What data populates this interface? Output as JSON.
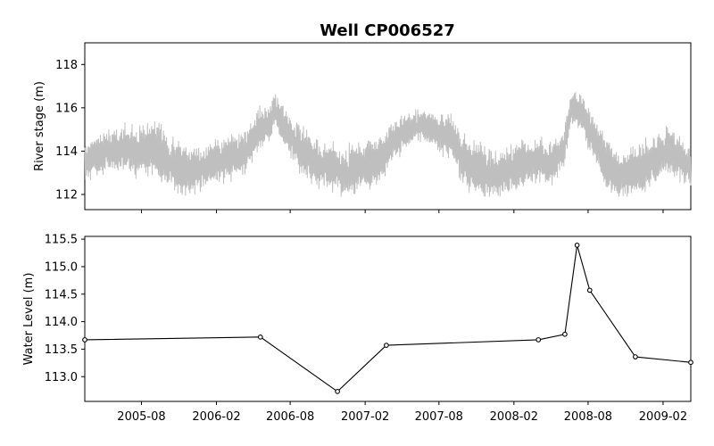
{
  "chart_data": [
    {
      "type": "line",
      "title": "Well CP006527",
      "ylabel": "River stage (m)",
      "xlabel": "",
      "xlim": [
        "2005-03-15",
        "2009-04-10"
      ],
      "ylim": [
        111.3,
        119.0
      ],
      "yticks": [
        112,
        114,
        116,
        118
      ],
      "grid": false,
      "series": [
        {
          "color": "#bfbfbf",
          "style": "noisy-daily",
          "anchors": [
            [
              "2005-03-15",
              113.5,
              0.9
            ],
            [
              "2005-05-01",
              114.0,
              0.9
            ],
            [
              "2005-07-01",
              114.0,
              1.0
            ],
            [
              "2005-09-01",
              114.2,
              1.2
            ],
            [
              "2005-10-15",
              113.3,
              1.1
            ],
            [
              "2005-12-15",
              113.1,
              1.0
            ],
            [
              "2006-02-01",
              113.6,
              0.9
            ],
            [
              "2006-03-20",
              113.8,
              0.9
            ],
            [
              "2006-04-15",
              113.9,
              0.9
            ],
            [
              "2006-05-15",
              115.0,
              0.8
            ],
            [
              "2006-06-10",
              115.3,
              0.8
            ],
            [
              "2006-06-25",
              116.0,
              0.7
            ],
            [
              "2006-07-20",
              115.0,
              0.9
            ],
            [
              "2006-08-20",
              114.2,
              1.0
            ],
            [
              "2006-10-01",
              113.5,
              1.0
            ],
            [
              "2006-12-15",
              113.0,
              1.0
            ],
            [
              "2007-02-15",
              113.4,
              1.0
            ],
            [
              "2007-03-20",
              113.9,
              0.9
            ],
            [
              "2007-05-01",
              114.8,
              0.8
            ],
            [
              "2007-06-15",
              115.2,
              0.6
            ],
            [
              "2007-07-20",
              115.0,
              0.7
            ],
            [
              "2007-09-01",
              114.6,
              1.0
            ],
            [
              "2007-10-15",
              113.2,
              1.1
            ],
            [
              "2007-12-15",
              112.9,
              1.0
            ],
            [
              "2008-02-15",
              113.3,
              1.0
            ],
            [
              "2008-03-20",
              113.6,
              0.9
            ],
            [
              "2008-05-01",
              113.4,
              0.9
            ],
            [
              "2008-06-01",
              114.0,
              0.8
            ],
            [
              "2008-06-20",
              116.0,
              0.7
            ],
            [
              "2008-07-15",
              115.8,
              0.7
            ],
            [
              "2008-08-20",
              114.3,
              1.0
            ],
            [
              "2008-10-01",
              113.0,
              1.0
            ],
            [
              "2008-11-15",
              112.9,
              1.0
            ],
            [
              "2009-01-01",
              113.4,
              1.0
            ],
            [
              "2009-02-15",
              114.1,
              0.9
            ],
            [
              "2009-04-10",
              113.2,
              0.8
            ]
          ]
        }
      ]
    },
    {
      "type": "line",
      "title": "",
      "ylabel": "Water Level (m)",
      "xlabel": "",
      "xlim": [
        "2005-03-15",
        "2009-04-10"
      ],
      "ylim": [
        112.55,
        115.55
      ],
      "yticks": [
        113.0,
        113.5,
        114.0,
        114.5,
        115.0,
        115.5
      ],
      "xticks": [
        "2005-08",
        "2006-02",
        "2006-08",
        "2007-02",
        "2007-08",
        "2008-02",
        "2008-08",
        "2009-02"
      ],
      "grid": false,
      "series": [
        {
          "color": "#000000",
          "marker": "circle-open",
          "x": [
            "2005-03-15",
            "2006-05-20",
            "2006-11-25",
            "2007-03-25",
            "2008-04-01",
            "2008-06-05",
            "2008-07-05",
            "2008-08-05",
            "2008-11-25",
            "2009-04-10"
          ],
          "y": [
            113.67,
            113.72,
            112.73,
            113.57,
            113.67,
            113.77,
            115.39,
            114.57,
            113.36,
            113.26
          ]
        }
      ]
    }
  ]
}
